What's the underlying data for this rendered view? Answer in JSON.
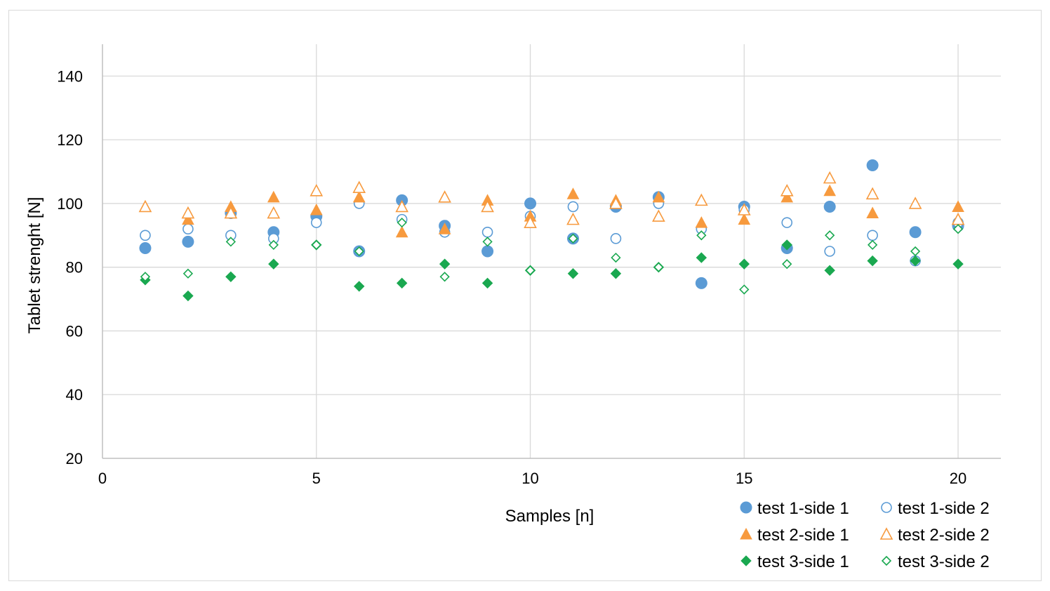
{
  "chart_data": {
    "type": "scatter",
    "title": "",
    "xlabel": "Samples [n]",
    "ylabel": "Tablet strenght [N]",
    "xlim": [
      0,
      21
    ],
    "ylim": [
      20,
      150
    ],
    "xticks": [
      0,
      5,
      10,
      15,
      20
    ],
    "yticks": [
      20,
      40,
      60,
      80,
      100,
      120,
      140
    ],
    "grid": true,
    "legend_position": "bottom-right",
    "x": [
      1,
      2,
      3,
      4,
      5,
      6,
      7,
      8,
      9,
      10,
      11,
      12,
      13,
      14,
      15,
      16,
      17,
      18,
      19,
      20
    ],
    "series": [
      {
        "name": "test 1-side 1",
        "color": "#5b9bd5",
        "marker": "circle",
        "filled": true,
        "values": [
          86,
          88,
          97,
          91,
          96,
          85,
          101,
          93,
          85,
          100,
          89,
          99,
          102,
          75,
          99,
          86,
          99,
          112,
          91,
          93
        ]
      },
      {
        "name": "test 1-side 2",
        "color": "#5b9bd5",
        "marker": "circle",
        "filled": false,
        "values": [
          90,
          92,
          90,
          89,
          94,
          100,
          95,
          91,
          91,
          96,
          99,
          89,
          100,
          92,
          98,
          94,
          85,
          90,
          82,
          94
        ]
      },
      {
        "name": "test 2-side 1",
        "color": "#f79a3e",
        "marker": "triangle",
        "filled": true,
        "values": [
          99,
          95,
          99,
          102,
          98,
          102,
          91,
          92,
          101,
          96,
          103,
          101,
          102,
          94,
          95,
          102,
          104,
          97,
          100,
          99
        ]
      },
      {
        "name": "test 2-side 2",
        "color": "#f79a3e",
        "marker": "triangle",
        "filled": false,
        "values": [
          99,
          97,
          97,
          97,
          104,
          105,
          99,
          102,
          99,
          94,
          95,
          100,
          96,
          101,
          98,
          104,
          108,
          103,
          100,
          95
        ]
      },
      {
        "name": "test 3-side 1",
        "color": "#1aa850",
        "marker": "diamond",
        "filled": true,
        "values": [
          76,
          71,
          77,
          81,
          87,
          74,
          75,
          81,
          75,
          79,
          78,
          78,
          80,
          83,
          81,
          87,
          79,
          82,
          82,
          81
        ]
      },
      {
        "name": "test 3-side 2",
        "color": "#1aa850",
        "marker": "diamond",
        "filled": false,
        "values": [
          77,
          78,
          88,
          87,
          87,
          85,
          94,
          77,
          88,
          79,
          89,
          83,
          80,
          90,
          73,
          81,
          90,
          87,
          85,
          92
        ]
      }
    ]
  }
}
